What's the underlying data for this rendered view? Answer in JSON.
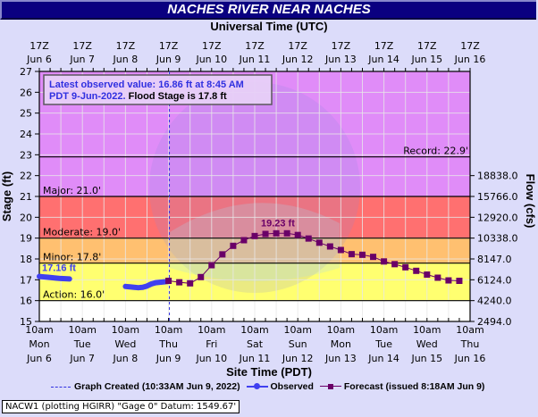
{
  "header": {
    "title": "NACHES RIVER NEAR NACHES",
    "top_axis_title": "Universal Time (UTC)",
    "bottom_axis_title": "Site Time (PDT)"
  },
  "info_box": {
    "line1": "Latest observed value: 16.86 ft at 8:45 AM",
    "line2_blue": "PDT 9-Jun-2022.",
    "line2_black": "Flood Stage is 17.8 ft"
  },
  "legend": {
    "graph_created": "Graph Created (10:33AM Jun 9, 2022)",
    "observed": "Observed",
    "forecast": "Forecast (issued 8:18AM Jun 9)"
  },
  "footer": {
    "text": "NACW1 (plotting HGIRR) \"Gage 0\" Datum: 1549.67'"
  },
  "colors": {
    "title_bg": "#0a0080",
    "page_bg": "#dcdcfa",
    "record_band": "#e08cf8",
    "major_band": "#ff7070",
    "moderate_band": "#ffc070",
    "minor_band": "#ffff70",
    "below_band": "#ffffff",
    "observed": "#4040f0",
    "forecast": "#6a0068",
    "graph_created_line": "#3030e0"
  },
  "chart_data": {
    "type": "line",
    "title": "NACHES RIVER NEAR NACHES",
    "xlabel": "Site Time (PDT)",
    "x2label": "Universal Time (UTC)",
    "ylabel": "Stage (ft)",
    "y2label": "Flow (cfs)",
    "ylim": [
      15,
      27
    ],
    "yticks": [
      15,
      16,
      17,
      18,
      19,
      20,
      21,
      22,
      23,
      24,
      25,
      26,
      27
    ],
    "y2_ticks": [
      {
        "stage": 15,
        "label": "2494.0"
      },
      {
        "stage": 16,
        "label": "4240.0"
      },
      {
        "stage": 17,
        "label": "6124.0"
      },
      {
        "stage": 18,
        "label": "8147.0"
      },
      {
        "stage": 19,
        "label": "10338.0"
      },
      {
        "stage": 20,
        "label": "12920.0"
      },
      {
        "stage": 21,
        "label": "15766.0"
      },
      {
        "stage": 22,
        "label": "18838.0"
      }
    ],
    "x_ticks_bottom": [
      {
        "time": "10am",
        "day": "Mon",
        "date": "Jun 6"
      },
      {
        "time": "10am",
        "day": "Tue",
        "date": "Jun 7"
      },
      {
        "time": "10am",
        "day": "Wed",
        "date": "Jun 8"
      },
      {
        "time": "10am",
        "day": "Thu",
        "date": "Jun 9"
      },
      {
        "time": "10am",
        "day": "Fri",
        "date": "Jun 10"
      },
      {
        "time": "10am",
        "day": "Sat",
        "date": "Jun 11"
      },
      {
        "time": "10am",
        "day": "Sun",
        "date": "Jun 12"
      },
      {
        "time": "10am",
        "day": "Mon",
        "date": "Jun 13"
      },
      {
        "time": "10am",
        "day": "Tue",
        "date": "Jun 14"
      },
      {
        "time": "10am",
        "day": "Wed",
        "date": "Jun 15"
      },
      {
        "time": "10am",
        "day": "Thu",
        "date": "Jun 16"
      }
    ],
    "x_ticks_top": [
      {
        "time": "17Z",
        "date": "Jun 6"
      },
      {
        "time": "17Z",
        "date": "Jun 7"
      },
      {
        "time": "17Z",
        "date": "Jun 8"
      },
      {
        "time": "17Z",
        "date": "Jun 9"
      },
      {
        "time": "17Z",
        "date": "Jun 10"
      },
      {
        "time": "17Z",
        "date": "Jun 11"
      },
      {
        "time": "17Z",
        "date": "Jun 12"
      },
      {
        "time": "17Z",
        "date": "Jun 13"
      },
      {
        "time": "17Z",
        "date": "Jun 14"
      },
      {
        "time": "17Z",
        "date": "Jun 15"
      },
      {
        "time": "17Z",
        "date": "Jun 16"
      }
    ],
    "thresholds": [
      {
        "name": "Record",
        "label": "Record: 22.9'",
        "value": 22.9
      },
      {
        "name": "Major",
        "label": "Major: 21.0'",
        "value": 21.0
      },
      {
        "name": "Moderate",
        "label": "Moderate: 19.0'",
        "value": 19.0
      },
      {
        "name": "Minor",
        "label": "Minor: 17.8'",
        "value": 17.8
      },
      {
        "name": "Action",
        "label": "Action: 16.0'",
        "value": 16.0
      }
    ],
    "annotations": [
      {
        "text": "17.16 ft",
        "series": "Observed",
        "x_days": 0.0,
        "y": 17.16
      },
      {
        "text": "19.23 ft",
        "series": "Forecast",
        "x_days": 5.6,
        "y": 19.23
      }
    ],
    "graph_created_x_days": 3.02,
    "series": [
      {
        "name": "Observed",
        "x_days": [
          0.0,
          0.1,
          0.2,
          0.3,
          0.4,
          0.5,
          0.6,
          0.7,
          2.0,
          2.1,
          2.2,
          2.3,
          2.4,
          2.5,
          2.6,
          2.7,
          2.8,
          2.9,
          3.0
        ],
        "values": [
          17.16,
          17.14,
          17.12,
          17.1,
          17.08,
          17.06,
          17.05,
          17.04,
          16.68,
          16.66,
          16.64,
          16.62,
          16.64,
          16.7,
          16.8,
          16.86,
          16.88,
          16.9,
          16.92
        ]
      },
      {
        "name": "Forecast",
        "x_days": [
          3.0,
          3.25,
          3.5,
          3.75,
          4.0,
          4.25,
          4.5,
          4.75,
          5.0,
          5.25,
          5.5,
          5.75,
          6.0,
          6.25,
          6.5,
          6.75,
          7.0,
          7.25,
          7.5,
          7.75,
          8.0,
          8.25,
          8.5,
          8.75,
          9.0,
          9.25,
          9.5,
          9.75
        ],
        "values": [
          16.95,
          16.88,
          16.83,
          17.13,
          17.7,
          18.22,
          18.63,
          18.9,
          19.1,
          19.2,
          19.23,
          19.23,
          19.15,
          18.98,
          18.78,
          18.6,
          18.43,
          18.23,
          18.2,
          18.1,
          17.88,
          17.75,
          17.6,
          17.43,
          17.25,
          17.1,
          16.97,
          16.95
        ]
      }
    ]
  }
}
